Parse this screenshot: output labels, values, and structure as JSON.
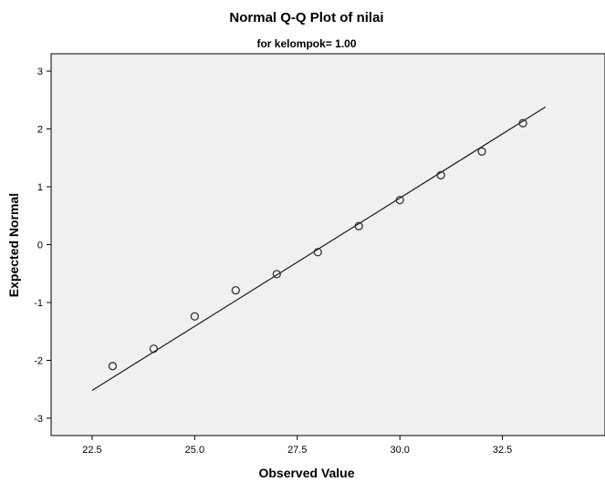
{
  "chart_data": {
    "type": "scatter",
    "title": "Normal Q-Q Plot of nilai",
    "subtitle": "for kelompok= 1.00",
    "xlabel": "Observed Value",
    "ylabel": "Expected Normal",
    "xlim": [
      21.5,
      35.0
    ],
    "ylim": [
      -3.3,
      3.3
    ],
    "xticks": [
      "22.5",
      "25.0",
      "27.5",
      "30.0",
      "32.5"
    ],
    "yticks": [
      "3",
      "2",
      "1",
      "0",
      "-1",
      "-2",
      "-3"
    ],
    "grid": false,
    "plot_background": "#f0f0f0",
    "marker_color": "#333333",
    "line_color": "#1a1a1a",
    "points": [
      {
        "x": 23,
        "y": -2.1
      },
      {
        "x": 24,
        "y": -1.8
      },
      {
        "x": 25,
        "y": -1.24
      },
      {
        "x": 26,
        "y": -0.79
      },
      {
        "x": 27,
        "y": -0.51
      },
      {
        "x": 28,
        "y": -0.13
      },
      {
        "x": 29,
        "y": 0.32
      },
      {
        "x": 30,
        "y": 0.77
      },
      {
        "x": 31,
        "y": 1.2
      },
      {
        "x": 32,
        "y": 1.61
      },
      {
        "x": 33,
        "y": 2.1
      }
    ],
    "reference_line": {
      "x": [
        22.5,
        33.55
      ],
      "y": [
        -2.52,
        2.38
      ]
    }
  }
}
